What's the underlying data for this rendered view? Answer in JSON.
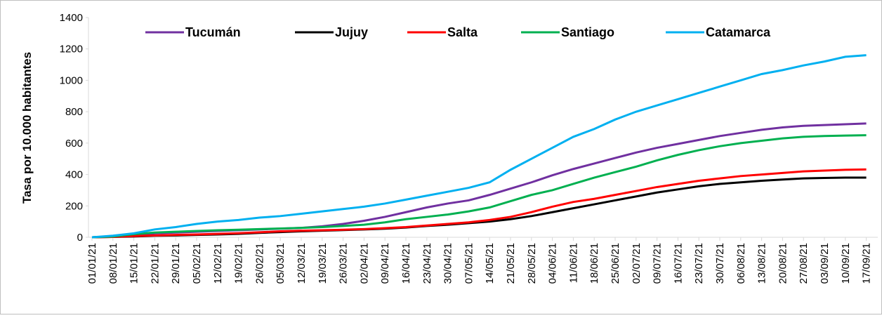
{
  "chart_data": {
    "type": "line",
    "y_label": "Tasa por 10.000 habitantes",
    "categories": [
      "01/01/21",
      "08/01/21",
      "15/01/21",
      "22/01/21",
      "29/01/21",
      "05/02/21",
      "12/02/21",
      "19/02/21",
      "26/02/21",
      "05/03/21",
      "12/03/21",
      "19/03/21",
      "26/03/21",
      "02/04/21",
      "09/04/21",
      "16/04/21",
      "23/04/21",
      "30/04/21",
      "07/05/21",
      "14/05/21",
      "21/05/21",
      "28/05/21",
      "04/06/21",
      "11/06/21",
      "18/06/21",
      "25/06/21",
      "02/07/21",
      "09/07/21",
      "16/07/21",
      "23/07/21",
      "30/07/21",
      "06/08/21",
      "13/08/21",
      "20/08/21",
      "27/08/21",
      "03/09/21",
      "10/09/21",
      "17/09/21"
    ],
    "series": [
      {
        "name": "Tucumán",
        "color": "#7030a0",
        "values": [
          0,
          5,
          15,
          25,
          30,
          35,
          40,
          45,
          50,
          55,
          60,
          70,
          85,
          105,
          130,
          160,
          190,
          215,
          235,
          270,
          310,
          350,
          395,
          435,
          470,
          505,
          540,
          570,
          595,
          620,
          645,
          665,
          685,
          700,
          710,
          715,
          720,
          725
        ]
      },
      {
        "name": "Jujuy",
        "color": "#000000",
        "values": [
          0,
          2,
          5,
          10,
          12,
          15,
          18,
          22,
          28,
          33,
          38,
          42,
          46,
          50,
          55,
          62,
          72,
          80,
          90,
          100,
          115,
          135,
          160,
          185,
          210,
          235,
          260,
          285,
          305,
          325,
          340,
          350,
          360,
          368,
          375,
          378,
          380,
          380
        ]
      },
      {
        "name": "Salta",
        "color": "#ff0000",
        "values": [
          0,
          2,
          8,
          12,
          15,
          18,
          22,
          26,
          32,
          38,
          42,
          45,
          48,
          52,
          58,
          65,
          75,
          85,
          95,
          110,
          130,
          160,
          195,
          225,
          245,
          270,
          295,
          320,
          340,
          360,
          375,
          390,
          400,
          410,
          420,
          425,
          430,
          432
        ]
      },
      {
        "name": "Santiago",
        "color": "#00b050",
        "values": [
          0,
          5,
          20,
          30,
          35,
          40,
          45,
          48,
          52,
          56,
          60,
          65,
          72,
          80,
          95,
          115,
          130,
          145,
          165,
          190,
          230,
          270,
          300,
          340,
          380,
          415,
          450,
          490,
          525,
          555,
          580,
          600,
          615,
          630,
          640,
          645,
          648,
          650
        ]
      },
      {
        "name": "Catamarca",
        "color": "#00b0f0",
        "values": [
          0,
          10,
          25,
          50,
          65,
          85,
          100,
          110,
          125,
          135,
          150,
          165,
          180,
          195,
          215,
          240,
          265,
          290,
          315,
          350,
          430,
          500,
          570,
          640,
          690,
          750,
          800,
          840,
          880,
          920,
          960,
          1000,
          1040,
          1065,
          1095,
          1120,
          1150,
          1160
        ]
      }
    ],
    "ylim": [
      0,
      1400
    ],
    "yticks": [
      0,
      200,
      400,
      600,
      800,
      1000,
      1200,
      1400
    ],
    "legend": "top"
  }
}
